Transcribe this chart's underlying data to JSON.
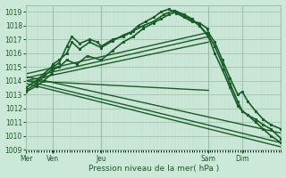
{
  "bg_color": "#cce8d8",
  "grid_color_major": "#9abfaa",
  "grid_color_minor": "#b8d8c8",
  "line_color": "#1a5c28",
  "xlabel_label": "Pression niveau de la mer( hPa )",
  "ylim": [
    1009,
    1019.5
  ],
  "yticks": [
    1009,
    1010,
    1011,
    1012,
    1013,
    1014,
    1015,
    1016,
    1017,
    1018,
    1019
  ],
  "day_labels": [
    "Mer",
    "Ven",
    "Jeu",
    "Sam",
    "Dim"
  ],
  "day_positions": [
    0.0,
    0.105,
    0.295,
    0.715,
    0.848
  ],
  "xlim": [
    0.0,
    1.0
  ],
  "series": [
    {
      "x": [
        0.0,
        0.04,
        0.07,
        0.1,
        0.105,
        0.13,
        0.16,
        0.18,
        0.21,
        0.25,
        0.28,
        0.295,
        0.34,
        0.38,
        0.41,
        0.44,
        0.47,
        0.5,
        0.53,
        0.56,
        0.59,
        0.62,
        0.65,
        0.68,
        0.71,
        0.715,
        0.74,
        0.77,
        0.8,
        0.83,
        0.848,
        0.87,
        0.9,
        0.93,
        0.96,
        1.0
      ],
      "y": [
        1013.3,
        1013.8,
        1014.3,
        1014.8,
        1015.0,
        1015.3,
        1016.5,
        1017.2,
        1016.7,
        1017.0,
        1016.8,
        1016.5,
        1017.0,
        1017.2,
        1017.5,
        1018.0,
        1018.3,
        1018.6,
        1019.0,
        1019.2,
        1018.9,
        1018.6,
        1018.3,
        1018.2,
        1017.8,
        1017.5,
        1016.8,
        1015.5,
        1014.2,
        1013.0,
        1013.2,
        1012.5,
        1011.8,
        1011.2,
        1010.8,
        1010.5
      ],
      "marker": true,
      "lw": 1.2
    },
    {
      "x": [
        0.0,
        0.04,
        0.07,
        0.1,
        0.105,
        0.13,
        0.16,
        0.18,
        0.21,
        0.25,
        0.295,
        0.34,
        0.38,
        0.42,
        0.46,
        0.5,
        0.54,
        0.58,
        0.62,
        0.65,
        0.68,
        0.715,
        0.74,
        0.77,
        0.8,
        0.83,
        0.848,
        0.87,
        0.9,
        0.93,
        0.96,
        1.0
      ],
      "y": [
        1013.5,
        1014.0,
        1014.5,
        1015.0,
        1015.2,
        1015.5,
        1016.0,
        1016.8,
        1016.3,
        1016.8,
        1016.4,
        1016.9,
        1017.3,
        1017.6,
        1018.0,
        1018.3,
        1018.8,
        1019.1,
        1018.8,
        1018.5,
        1018.0,
        1017.3,
        1016.5,
        1015.2,
        1013.8,
        1012.5,
        1011.8,
        1011.5,
        1011.0,
        1010.5,
        1010.0,
        1009.5
      ],
      "marker": true,
      "lw": 1.2
    },
    {
      "x": [
        0.0,
        0.715
      ],
      "y": [
        1014.5,
        1017.5
      ],
      "marker": false,
      "lw": 1.0
    },
    {
      "x": [
        0.0,
        0.715
      ],
      "y": [
        1014.2,
        1017.2
      ],
      "marker": false,
      "lw": 1.0
    },
    {
      "x": [
        0.0,
        0.715
      ],
      "y": [
        1014.0,
        1016.8
      ],
      "marker": false,
      "lw": 1.0
    },
    {
      "x": [
        0.0,
        0.715
      ],
      "y": [
        1014.0,
        1013.3
      ],
      "marker": false,
      "lw": 1.0
    },
    {
      "x": [
        0.0,
        1.0
      ],
      "y": [
        1014.3,
        1010.2
      ],
      "marker": false,
      "lw": 1.0
    },
    {
      "x": [
        0.0,
        1.0
      ],
      "y": [
        1014.0,
        1009.5
      ],
      "marker": false,
      "lw": 1.0
    },
    {
      "x": [
        0.0,
        1.0
      ],
      "y": [
        1013.8,
        1009.2
      ],
      "marker": false,
      "lw": 1.0
    },
    {
      "x": [
        0.0,
        0.04,
        0.07,
        0.1,
        0.105,
        0.13,
        0.16,
        0.2,
        0.24,
        0.295,
        0.34,
        0.38,
        0.42,
        0.46,
        0.5,
        0.53,
        0.56,
        0.59,
        0.62,
        0.65,
        0.68,
        0.715,
        0.74,
        0.77,
        0.8,
        0.83,
        0.848,
        0.87,
        0.9,
        0.93,
        0.96,
        1.0
      ],
      "y": [
        1013.2,
        1013.6,
        1014.0,
        1014.5,
        1014.8,
        1015.0,
        1015.5,
        1015.2,
        1015.8,
        1015.5,
        1016.2,
        1016.8,
        1017.2,
        1017.8,
        1018.2,
        1018.5,
        1018.8,
        1019.0,
        1018.7,
        1018.4,
        1018.0,
        1017.2,
        1016.0,
        1014.8,
        1013.5,
        1012.2,
        1011.8,
        1011.5,
        1011.2,
        1010.8,
        1010.5,
        1009.8
      ],
      "marker": true,
      "lw": 1.2
    }
  ]
}
